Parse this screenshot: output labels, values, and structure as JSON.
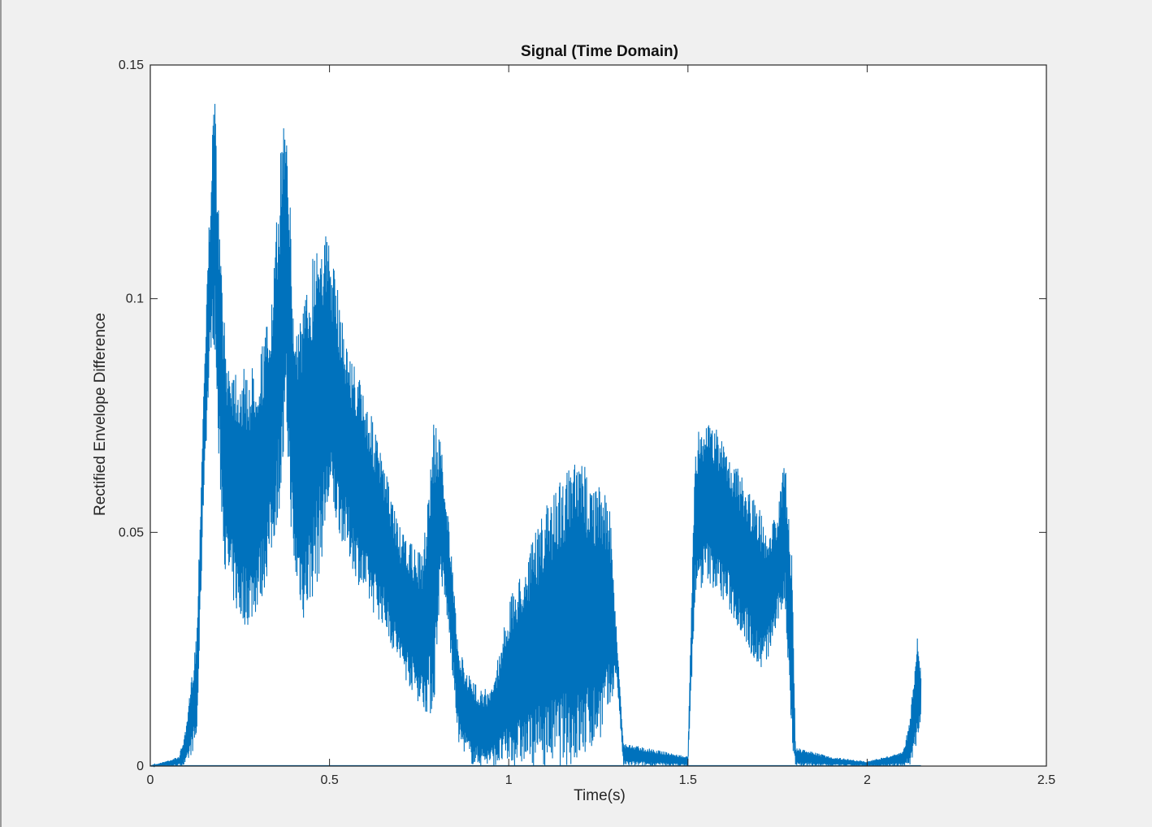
{
  "window": {
    "background": "#f0f0f0"
  },
  "chart_data": {
    "type": "line",
    "title": "Signal (Time Domain)",
    "xlabel": "Time(s)",
    "ylabel": "Rectified Envelope Difference",
    "xlim": [
      0,
      2.5
    ],
    "ylim": [
      0,
      0.15
    ],
    "xticks": [
      0,
      0.5,
      1,
      1.5,
      2,
      2.5
    ],
    "xtick_labels": [
      "0",
      "0.5",
      "1",
      "1.5",
      "2",
      "2.5"
    ],
    "yticks": [
      0,
      0.05,
      0.1,
      0.15
    ],
    "ytick_labels": [
      "0",
      "0.05",
      "0.1",
      "0.15"
    ],
    "grid": false,
    "line_color": "#0072bd",
    "series": [
      {
        "x": [
          0,
          0.08,
          0.1,
          0.13,
          0.15,
          0.17,
          0.18,
          0.19,
          0.21,
          0.25,
          0.28,
          0.31,
          0.34,
          0.37,
          0.38,
          0.4,
          0.43,
          0.47,
          0.5,
          0.55,
          0.6,
          0.65,
          0.7,
          0.76,
          0.79,
          0.81,
          0.83,
          0.86,
          0.9,
          0.95,
          1.0,
          1.05,
          1.1,
          1.15,
          1.2,
          1.25,
          1.28,
          1.3,
          1.32,
          1.5,
          1.52,
          1.55,
          1.6,
          1.65,
          1.7,
          1.72,
          1.75,
          1.77,
          1.79,
          1.8,
          1.9,
          2.0,
          2.1,
          2.12,
          2.14,
          2.15
        ],
        "upper": [
          0,
          0.002,
          0.008,
          0.03,
          0.085,
          0.13,
          0.145,
          0.12,
          0.09,
          0.085,
          0.085,
          0.09,
          0.1,
          0.14,
          0.147,
          0.095,
          0.1,
          0.118,
          0.112,
          0.09,
          0.08,
          0.065,
          0.05,
          0.045,
          0.075,
          0.07,
          0.055,
          0.025,
          0.018,
          0.016,
          0.035,
          0.045,
          0.055,
          0.063,
          0.066,
          0.06,
          0.058,
          0.03,
          0.005,
          0.002,
          0.07,
          0.075,
          0.07,
          0.062,
          0.055,
          0.05,
          0.055,
          0.066,
          0.045,
          0.004,
          0.002,
          0.001,
          0.003,
          0.01,
          0.03,
          0.02
        ],
        "lower": [
          0,
          0,
          0,
          0.005,
          0.06,
          0.09,
          0.09,
          0.065,
          0.04,
          0.03,
          0.03,
          0.035,
          0.045,
          0.06,
          0.07,
          0.04,
          0.03,
          0.04,
          0.055,
          0.045,
          0.035,
          0.03,
          0.02,
          0.012,
          0.01,
          0.04,
          0.03,
          0.005,
          0.0,
          0.0,
          0.0,
          0.0,
          0.0,
          0.0,
          0.0,
          0.005,
          0.01,
          0.02,
          0.0,
          0.0,
          0.035,
          0.04,
          0.035,
          0.028,
          0.02,
          0.022,
          0.03,
          0.035,
          0.005,
          0.0,
          0.0,
          0.0,
          0.0,
          0.0,
          0.005,
          0.01
        ]
      }
    ]
  }
}
